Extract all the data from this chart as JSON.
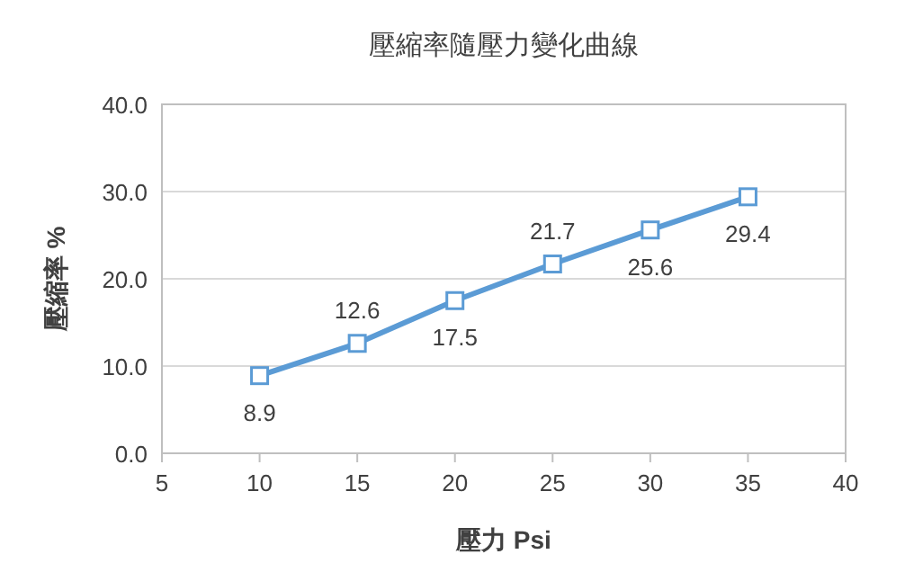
{
  "chart_data": {
    "type": "line",
    "title": "壓縮率隨壓力變化曲線",
    "xlabel": "壓力 Psi",
    "ylabel": "壓縮率 %",
    "x": [
      10,
      15,
      20,
      25,
      30,
      35
    ],
    "series": [
      {
        "color": "#5b9bd5",
        "values": [
          8.9,
          12.6,
          17.5,
          21.7,
          25.6,
          29.4
        ],
        "value_labels": [
          "8.9",
          "12.6",
          "17.5",
          "21.7",
          "25.6",
          "29.4"
        ]
      }
    ],
    "xlim": [
      5,
      40
    ],
    "xticks": [
      5,
      10,
      15,
      20,
      25,
      30,
      35,
      40
    ],
    "ylim": [
      0,
      40
    ],
    "yticks": [
      {
        "value": 0,
        "label": "0.0"
      },
      {
        "value": 10,
        "label": "10.0"
      },
      {
        "value": 20,
        "label": "20.0"
      },
      {
        "value": 30,
        "label": "30.0"
      },
      {
        "value": 40,
        "label": "40.0"
      }
    ],
    "grid": "y",
    "marker": "square",
    "line_style": "solid"
  }
}
